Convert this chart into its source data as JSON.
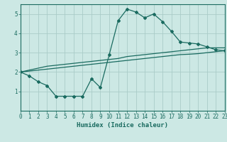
{
  "xlabel": "Humidex (Indice chaleur)",
  "background_color": "#cce8e4",
  "grid_color": "#aaccc8",
  "line_color": "#1a6b60",
  "x_values": [
    0,
    1,
    2,
    3,
    4,
    5,
    6,
    7,
    8,
    9,
    10,
    11,
    12,
    13,
    14,
    15,
    16,
    17,
    18,
    19,
    20,
    21,
    22,
    23
  ],
  "line1": [
    2.0,
    1.8,
    1.5,
    1.3,
    0.75,
    0.75,
    0.75,
    0.75,
    1.65,
    1.2,
    2.9,
    4.65,
    5.25,
    5.1,
    4.8,
    5.0,
    4.6,
    4.1,
    3.55,
    3.5,
    3.45,
    3.3,
    3.15,
    3.1
  ],
  "line2": [
    2.0,
    2.1,
    2.2,
    2.3,
    2.35,
    2.4,
    2.45,
    2.5,
    2.55,
    2.6,
    2.65,
    2.7,
    2.8,
    2.85,
    2.9,
    2.95,
    3.0,
    3.05,
    3.1,
    3.15,
    3.2,
    3.25,
    3.25,
    3.25
  ],
  "line3": [
    2.0,
    2.05,
    2.1,
    2.15,
    2.2,
    2.25,
    2.3,
    2.35,
    2.4,
    2.45,
    2.5,
    2.55,
    2.6,
    2.65,
    2.7,
    2.75,
    2.8,
    2.85,
    2.9,
    2.92,
    2.95,
    3.0,
    3.05,
    3.1
  ],
  "ylim": [
    0.0,
    5.5
  ],
  "xlim": [
    0,
    23
  ],
  "yticks": [
    1,
    2,
    3,
    4,
    5
  ],
  "xticks": [
    0,
    1,
    2,
    3,
    4,
    5,
    6,
    7,
    8,
    9,
    10,
    11,
    12,
    13,
    14,
    15,
    16,
    17,
    18,
    19,
    20,
    21,
    22,
    23
  ],
  "tick_fontsize": 5.5,
  "xlabel_fontsize": 6.5,
  "marker_size": 2.0,
  "linewidth": 0.9
}
